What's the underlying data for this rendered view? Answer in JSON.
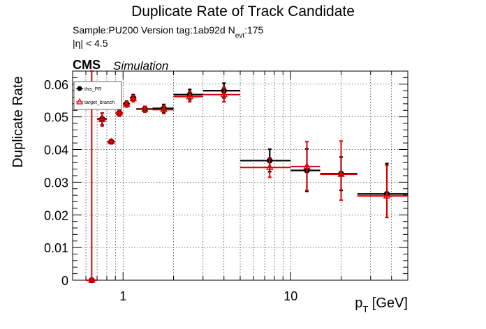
{
  "chart_data": {
    "type": "scatter",
    "title": "Duplicate Rate of Track Candidate",
    "info": {
      "sample_line": "Sample:PU200   Version tag:1ab92d  N",
      "nevt_sub": "evt",
      "nevt_value": ":175",
      "eta_cut": "|η| < 4.5"
    },
    "cms_label": "CMS",
    "cms_sublabel": "Simulation",
    "xlabel_main": "p",
    "xlabel_sub": "T",
    "xlabel_unit": " [GeV]",
    "ylabel": "Duplicate Rate",
    "x_scale": "log",
    "xlim": [
      0.5,
      50
    ],
    "ylim": [
      0,
      0.064
    ],
    "grid": true,
    "legend_position": "top-left",
    "x_tick_labels": [
      {
        "value": 1,
        "label": "1"
      },
      {
        "value": 10,
        "label": "10"
      }
    ],
    "y_tick_labels": [
      {
        "value": 0,
        "label": "0"
      },
      {
        "value": 0.01,
        "label": "0.01"
      },
      {
        "value": 0.02,
        "label": "0.02"
      },
      {
        "value": 0.03,
        "label": "0.03"
      },
      {
        "value": 0.04,
        "label": "0.04"
      },
      {
        "value": 0.05,
        "label": "0.05"
      },
      {
        "value": 0.06,
        "label": "0.06"
      }
    ],
    "series": [
      {
        "name": "this_PR",
        "color": "#000000",
        "marker": "circle",
        "points": [
          {
            "x": 0.65,
            "xlo": 0.6,
            "xhi": 0.7,
            "y": 0.0,
            "ylo": 0.0,
            "yhi": 0.0
          },
          {
            "x": 0.75,
            "xlo": 0.7,
            "xhi": 0.8,
            "y": 0.0494,
            "ylo": 0.0475,
            "yhi": 0.0512
          },
          {
            "x": 0.85,
            "xlo": 0.8,
            "xhi": 0.9,
            "y": 0.0424,
            "ylo": 0.0418,
            "yhi": 0.043
          },
          {
            "x": 0.95,
            "xlo": 0.9,
            "xhi": 1.0,
            "y": 0.0512,
            "ylo": 0.0503,
            "yhi": 0.0521
          },
          {
            "x": 1.05,
            "xlo": 1.0,
            "xhi": 1.1,
            "y": 0.054,
            "ylo": 0.0532,
            "yhi": 0.0548
          },
          {
            "x": 1.15,
            "xlo": 1.1,
            "xhi": 1.2,
            "y": 0.0558,
            "ylo": 0.0548,
            "yhi": 0.0568
          },
          {
            "x": 1.35,
            "xlo": 1.2,
            "xhi": 1.5,
            "y": 0.0524,
            "ylo": 0.0515,
            "yhi": 0.0532
          },
          {
            "x": 1.75,
            "xlo": 1.5,
            "xhi": 2.0,
            "y": 0.0526,
            "ylo": 0.0514,
            "yhi": 0.0538
          },
          {
            "x": 2.5,
            "xlo": 2.0,
            "xhi": 3.0,
            "y": 0.0568,
            "ylo": 0.0552,
            "yhi": 0.0584
          },
          {
            "x": 4.0,
            "xlo": 3.0,
            "xhi": 5.0,
            "y": 0.058,
            "ylo": 0.0558,
            "yhi": 0.0603
          },
          {
            "x": 7.5,
            "xlo": 5.0,
            "xhi": 10.0,
            "y": 0.0366,
            "ylo": 0.0332,
            "yhi": 0.0401
          },
          {
            "x": 12.5,
            "xlo": 10.0,
            "xhi": 15.0,
            "y": 0.0336,
            "ylo": 0.0272,
            "yhi": 0.0402
          },
          {
            "x": 20.0,
            "xlo": 15.0,
            "xhi": 25.0,
            "y": 0.0326,
            "ylo": 0.0275,
            "yhi": 0.0377
          },
          {
            "x": 37.5,
            "xlo": 25.0,
            "xhi": 50.0,
            "y": 0.0264,
            "ylo": 0.0192,
            "yhi": 0.0357
          }
        ]
      },
      {
        "name": "target_branch",
        "color": "#dd0000",
        "marker": "triangle",
        "points": [
          {
            "x": 0.65,
            "xlo": 0.6,
            "xhi": 0.7,
            "y": 0.0,
            "ylo": 0.0,
            "yhi": 0.0645
          },
          {
            "x": 0.75,
            "xlo": 0.7,
            "xhi": 0.8,
            "y": 0.0492,
            "ylo": 0.0472,
            "yhi": 0.0512
          },
          {
            "x": 0.85,
            "xlo": 0.8,
            "xhi": 0.9,
            "y": 0.0424,
            "ylo": 0.0417,
            "yhi": 0.0431
          },
          {
            "x": 0.95,
            "xlo": 0.9,
            "xhi": 1.0,
            "y": 0.0512,
            "ylo": 0.0502,
            "yhi": 0.0522
          },
          {
            "x": 1.05,
            "xlo": 1.0,
            "xhi": 1.1,
            "y": 0.0538,
            "ylo": 0.053,
            "yhi": 0.0546
          },
          {
            "x": 1.15,
            "xlo": 1.1,
            "xhi": 1.2,
            "y": 0.0556,
            "ylo": 0.0546,
            "yhi": 0.0566
          },
          {
            "x": 1.35,
            "xlo": 1.2,
            "xhi": 1.5,
            "y": 0.0523,
            "ylo": 0.0514,
            "yhi": 0.0532
          },
          {
            "x": 1.75,
            "xlo": 1.5,
            "xhi": 2.0,
            "y": 0.0522,
            "ylo": 0.051,
            "yhi": 0.0534
          },
          {
            "x": 2.5,
            "xlo": 2.0,
            "xhi": 3.0,
            "y": 0.0562,
            "ylo": 0.0546,
            "yhi": 0.0578
          },
          {
            "x": 4.0,
            "xlo": 3.0,
            "xhi": 5.0,
            "y": 0.0568,
            "ylo": 0.0546,
            "yhi": 0.059
          },
          {
            "x": 7.5,
            "xlo": 5.0,
            "xhi": 10.0,
            "y": 0.0345,
            "ylo": 0.0315,
            "yhi": 0.0375
          },
          {
            "x": 12.5,
            "xlo": 10.0,
            "xhi": 15.0,
            "y": 0.0348,
            "ylo": 0.0275,
            "yhi": 0.0424
          },
          {
            "x": 20.0,
            "xlo": 15.0,
            "xhi": 25.0,
            "y": 0.0324,
            "ylo": 0.0245,
            "yhi": 0.0426
          },
          {
            "x": 37.5,
            "xlo": 25.0,
            "xhi": 50.0,
            "y": 0.0258,
            "ylo": 0.0192,
            "yhi": 0.0352
          }
        ]
      }
    ]
  }
}
